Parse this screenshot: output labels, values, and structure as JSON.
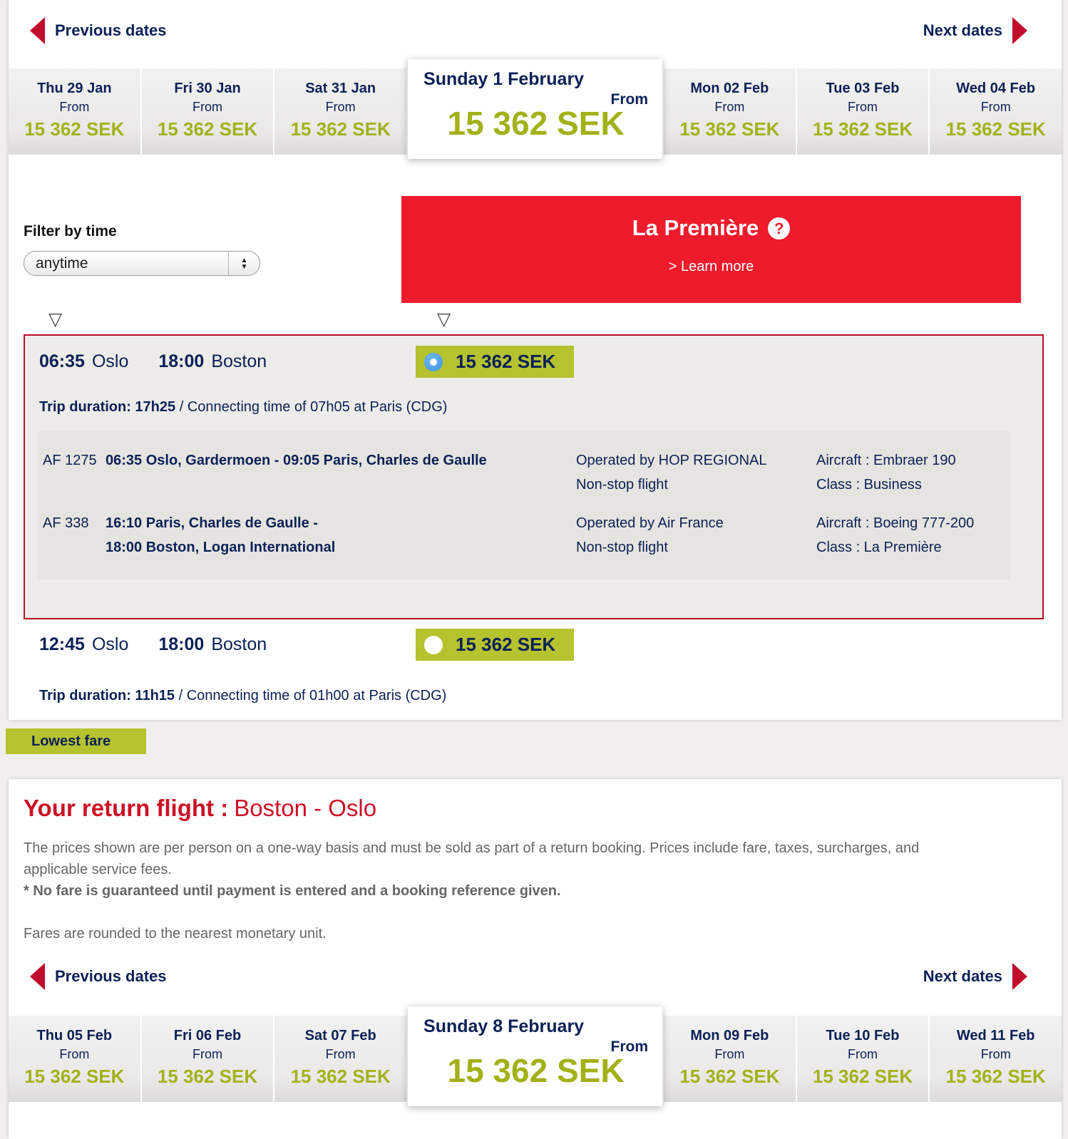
{
  "colors": {
    "navy": "#0a2156",
    "olive": "#a3b119",
    "olive_bg": "#b6c22e",
    "banner_red": "#ee1b2d",
    "heading_red": "#cc1126",
    "arrow_red": "#c00d2b",
    "card_border_red": "#b60d23"
  },
  "outbound": {
    "prev_label": "Previous dates",
    "next_label": "Next dates",
    "dates": [
      {
        "day": "Thu 29 Jan",
        "from": "From",
        "price": "15 362 SEK"
      },
      {
        "day": "Fri 30 Jan",
        "from": "From",
        "price": "15 362 SEK"
      },
      {
        "day": "Sat 31 Jan",
        "from": "From",
        "price": "15 362 SEK"
      },
      {
        "day": "Sunday 1 February",
        "from": "From",
        "price": "15 362 SEK",
        "selected": true
      },
      {
        "day": "Mon 02 Feb",
        "from": "From",
        "price": "15 362 SEK"
      },
      {
        "day": "Tue 03 Feb",
        "from": "From",
        "price": "15 362 SEK"
      },
      {
        "day": "Wed 04 Feb",
        "from": "From",
        "price": "15 362 SEK"
      }
    ],
    "filter_label": "Filter by time",
    "filter_value": "anytime",
    "banner_title": "La Première",
    "banner_help": "?",
    "banner_link": "> Learn more",
    "flights": [
      {
        "dep_time": "06:35",
        "dep_city": "Oslo",
        "arr_time": "18:00",
        "arr_city": "Boston",
        "price": "15 362 SEK",
        "selected": true,
        "duration_bold": "Trip duration: 17h25",
        "duration_rest": " / Connecting time of 07h05 at Paris (CDG)",
        "segments": [
          {
            "no": "AF 1275",
            "route1": "06:35 Oslo, Gardermoen - 09:05 Paris, Charles de Gaulle",
            "operated": "Operated by HOP REGIONAL",
            "stop": "Non-stop flight",
            "aircraft": "Aircraft : Embraer 190",
            "cabin": "Class : Business"
          },
          {
            "no": "AF 338",
            "route1": "16:10 Paris, Charles de Gaulle -",
            "route2": "18:00 Boston, Logan International",
            "operated": "Operated by Air France",
            "stop": "Non-stop flight",
            "aircraft": "Aircraft : Boeing 777-200",
            "cabin": "Class : La Première"
          }
        ]
      },
      {
        "dep_time": "12:45",
        "dep_city": "Oslo",
        "arr_time": "18:00",
        "arr_city": "Boston",
        "price": "15 362 SEK",
        "selected": false,
        "duration_bold": "Trip duration: 11h15",
        "duration_rest": " / Connecting time of 01h00 at Paris (CDG)"
      }
    ],
    "lowest_fare": "Lowest fare"
  },
  "return_flight": {
    "heading_bold": "Your return flight :",
    "heading_route": "Boston - Oslo",
    "note1": "The prices shown are per person on a one-way basis and must be sold as part of a return booking. Prices include fare, taxes, surcharges, and applicable service fees.",
    "note2": "* No fare is guaranteed until payment is entered and a booking reference given.",
    "note3": "Fares are rounded to the nearest monetary unit.",
    "prev_label": "Previous dates",
    "next_label": "Next dates",
    "dates": [
      {
        "day": "Thu 05 Feb",
        "from": "From",
        "price": "15 362 SEK"
      },
      {
        "day": "Fri 06 Feb",
        "from": "From",
        "price": "15 362 SEK"
      },
      {
        "day": "Sat 07 Feb",
        "from": "From",
        "price": "15 362 SEK"
      },
      {
        "day": "Sunday 8 February",
        "from": "From",
        "price": "15 362 SEK",
        "selected": true
      },
      {
        "day": "Mon 09 Feb",
        "from": "From",
        "price": "15 362 SEK"
      },
      {
        "day": "Tue 10 Feb",
        "from": "From",
        "price": "15 362 SEK"
      },
      {
        "day": "Wed 11 Feb",
        "from": "From",
        "price": "15 362 SEK"
      }
    ]
  }
}
